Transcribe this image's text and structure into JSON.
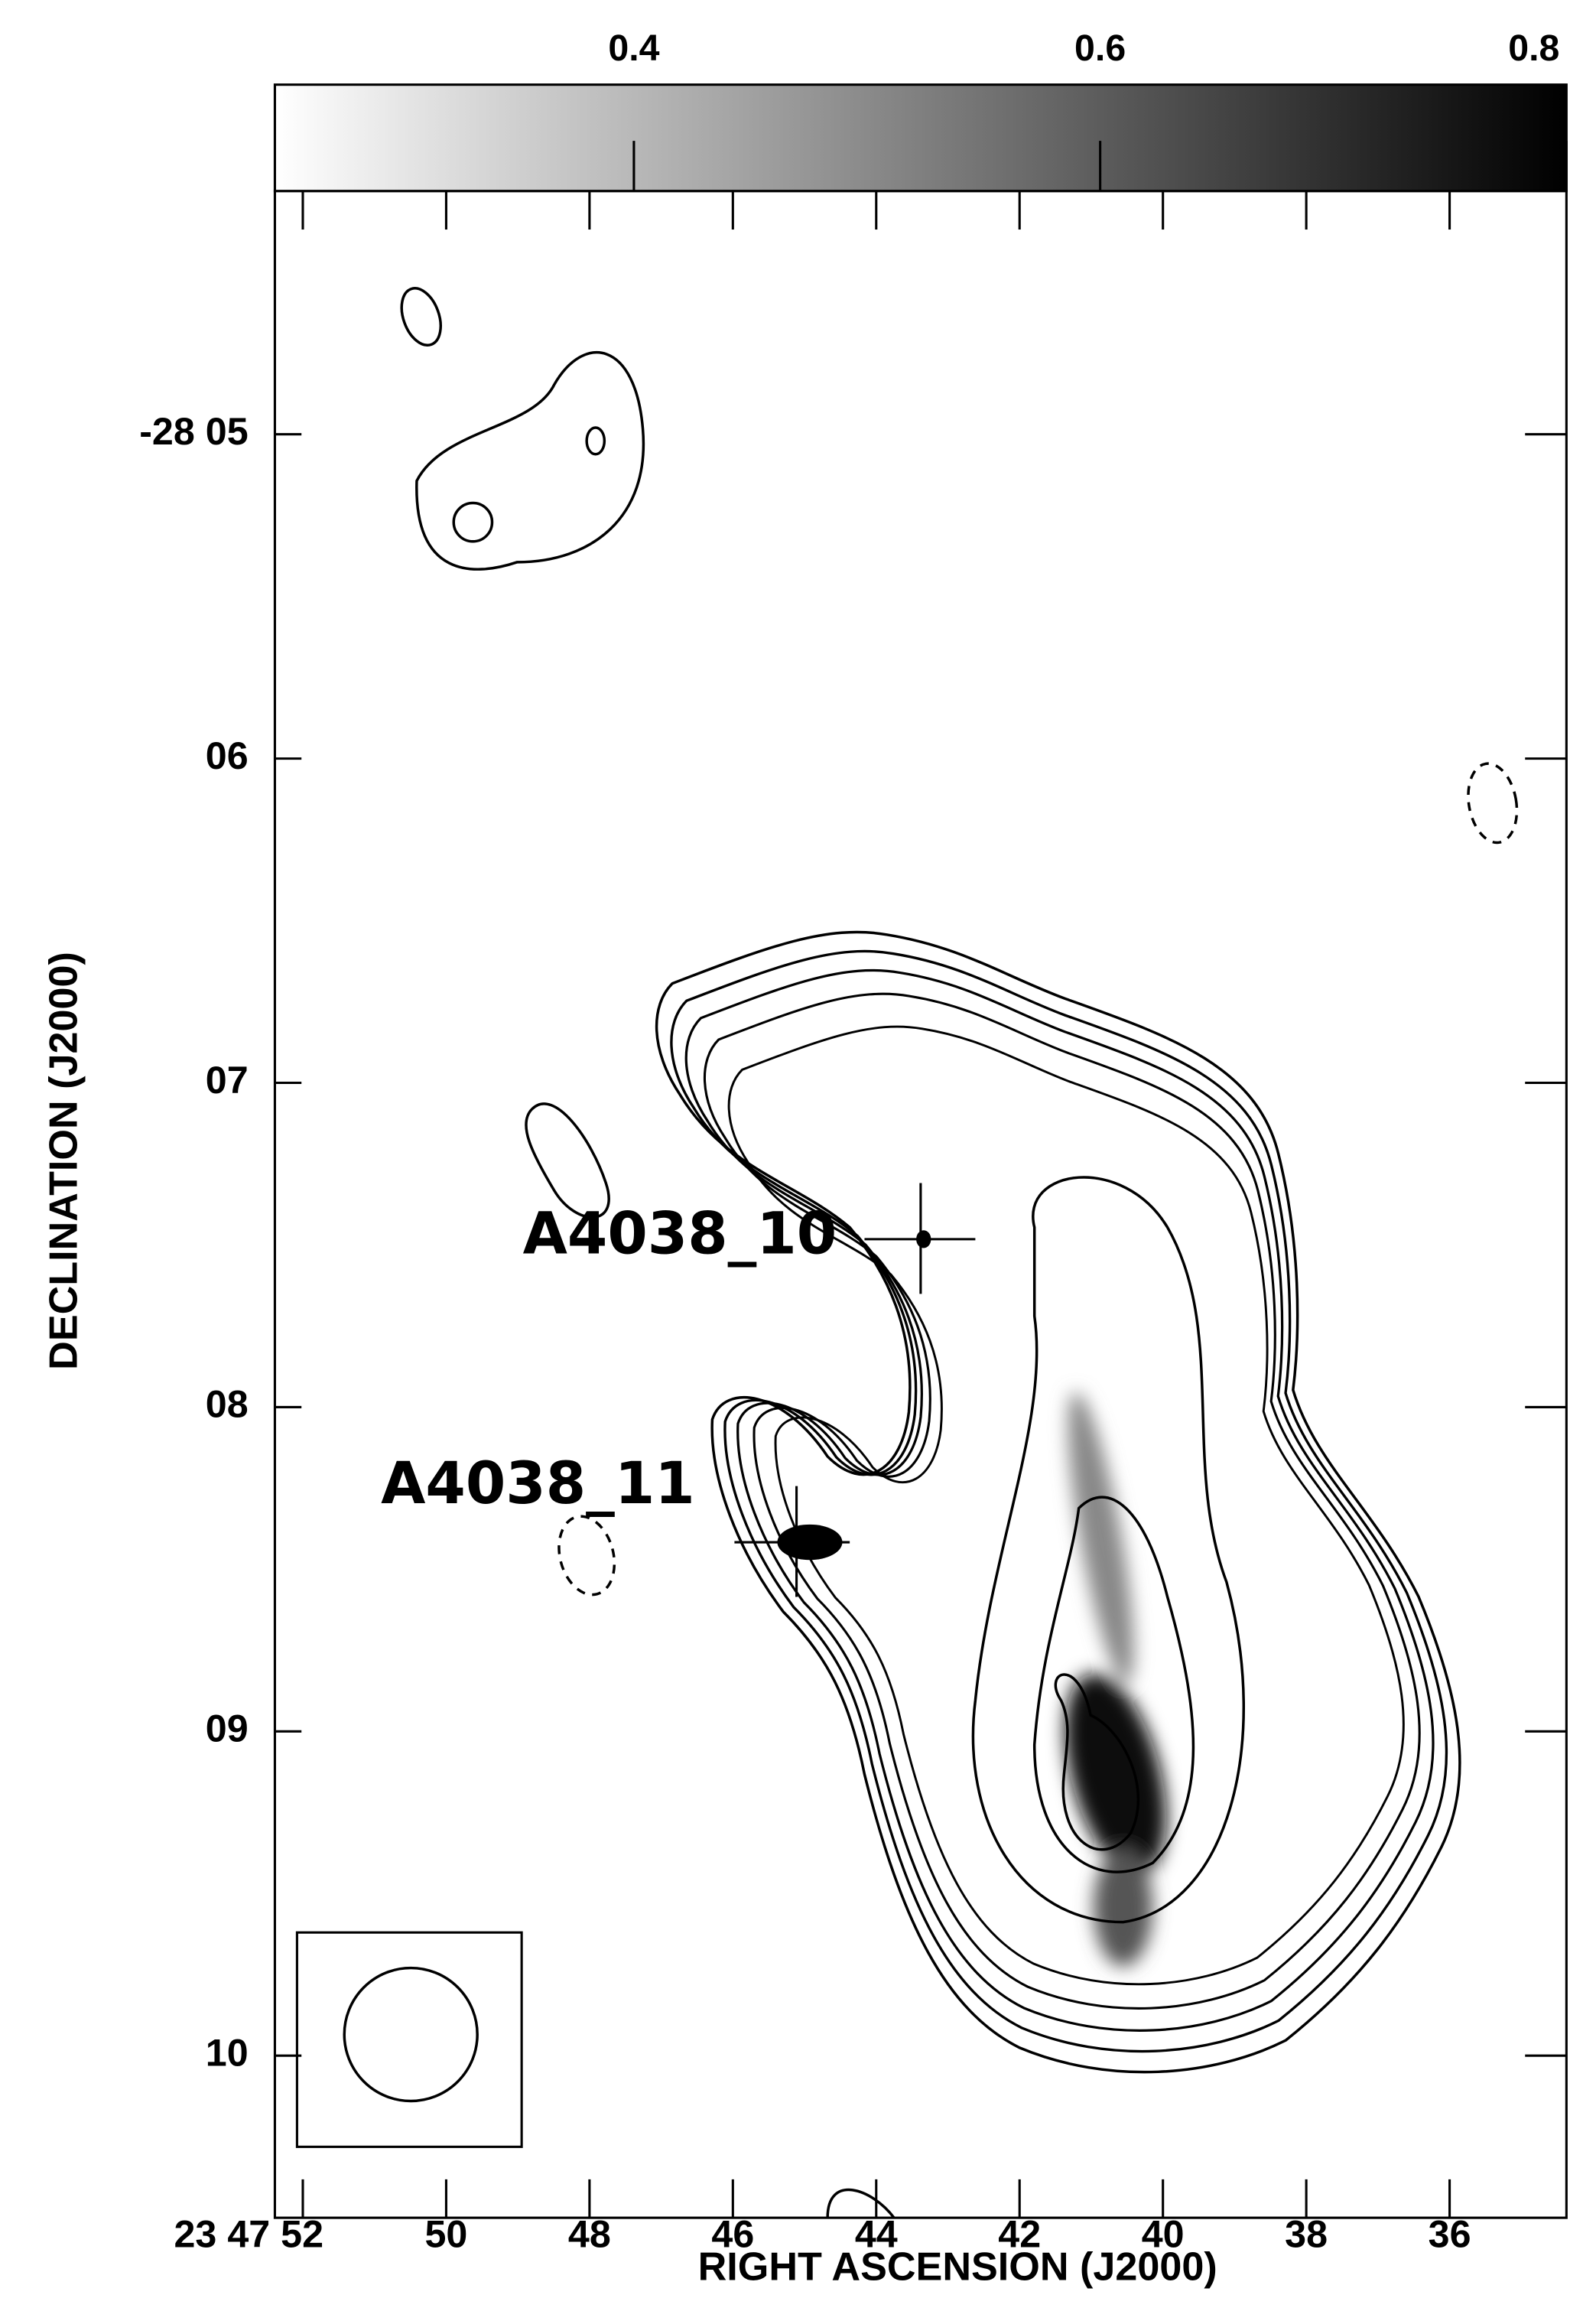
{
  "chart_data": {
    "type": "image",
    "colorbar_lim": [
      0.246,
      0.8
    ],
    "colorbar_ticks": [
      0.4,
      0.6,
      0.8
    ],
    "xlabel": "RIGHT ASCENSION (J2000)",
    "ylabel": "DECLINATION (J2000)",
    "xlim": [
      52.39,
      34.37
    ],
    "xticks": [
      {
        "value": 52,
        "label": "23 47 52"
      },
      50,
      48,
      46,
      44,
      42,
      40,
      38,
      36
    ],
    "ylim": [
      4.25,
      10.5
    ],
    "yticks": [
      {
        "value": 5,
        "label": "-28 05"
      },
      {
        "value": 6,
        "label": "06"
      },
      {
        "value": 7,
        "label": "07"
      },
      {
        "value": 8,
        "label": "08"
      },
      {
        "value": 9,
        "label": "09"
      },
      {
        "value": 10,
        "label": "10"
      }
    ],
    "annotations": [
      "A4038_10",
      "A4038_11"
    ]
  }
}
